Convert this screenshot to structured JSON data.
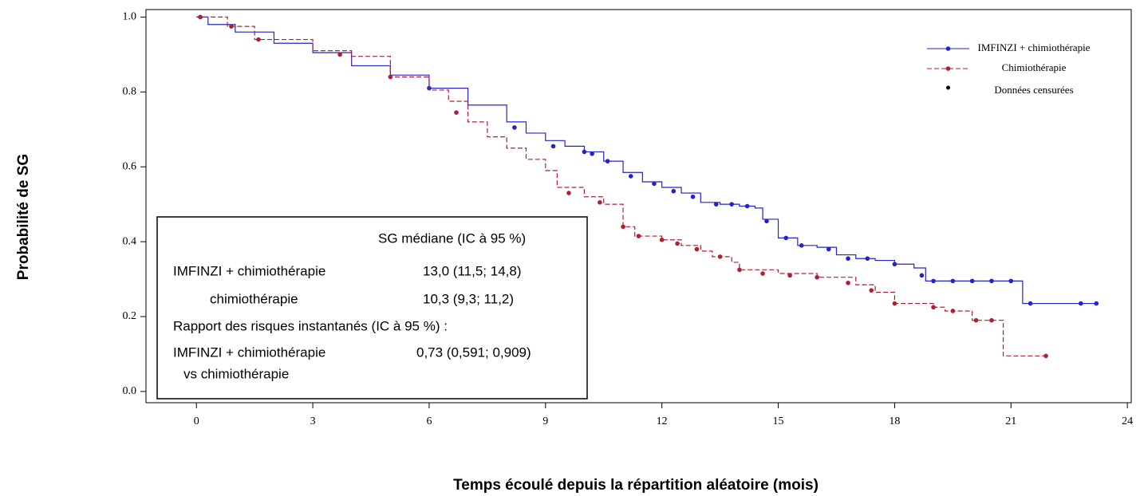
{
  "chart_data": {
    "type": "kaplan-meier",
    "y_label": "Probabilité de SG",
    "x_label": "Temps écoulé depuis la répartition aléatoire (mois)",
    "xlim": [
      -1.3,
      24.1
    ],
    "ylim": [
      -0.03,
      1.02
    ],
    "xticks": [
      0,
      3,
      6,
      9,
      12,
      15,
      18,
      21,
      24
    ],
    "yticks": [
      {
        "value": 0,
        "label": "0.0"
      },
      {
        "value": 0.2,
        "label": "0.2"
      },
      {
        "value": 0.4,
        "label": "0.4"
      },
      {
        "value": 0.6,
        "label": "0.6"
      },
      {
        "value": 0.8,
        "label": "0.8"
      },
      {
        "value": 1,
        "label": "1.0"
      }
    ],
    "censored_label": "Données censurées",
    "series": [
      {
        "name": "IMFINZI + chimiothérapie",
        "color": "#2323c8",
        "dashed": false,
        "x": [
          0,
          0.3,
          1,
          2,
          3,
          4,
          5,
          6,
          7,
          8,
          8.5,
          9,
          9.5,
          10,
          10.5,
          11,
          11.5,
          12,
          12.5,
          13,
          13.5,
          14,
          14.4,
          14.6,
          15,
          15.5,
          16,
          16.5,
          17,
          17.5,
          18,
          18.5,
          18.8,
          19.5,
          21.3,
          23.2
        ],
        "values": [
          1.0,
          0.98,
          0.96,
          0.93,
          0.905,
          0.87,
          0.845,
          0.81,
          0.765,
          0.72,
          0.69,
          0.67,
          0.655,
          0.64,
          0.615,
          0.585,
          0.56,
          0.545,
          0.53,
          0.505,
          0.5,
          0.495,
          0.49,
          0.46,
          0.41,
          0.39,
          0.385,
          0.365,
          0.355,
          0.35,
          0.34,
          0.33,
          0.295,
          0.295,
          0.235,
          0.235
        ],
        "censored_x": [
          0.1,
          6,
          8.2,
          9.2,
          10,
          10.2,
          10.6,
          11.2,
          11.8,
          12.3,
          12.8,
          13.4,
          13.8,
          14.2,
          14.7,
          15.2,
          15.6,
          16.3,
          16.8,
          17.3,
          18,
          18.7,
          19,
          19.5,
          20,
          20.5,
          21,
          21.5,
          22.8,
          23.2
        ],
        "censored_values": [
          1.0,
          0.81,
          0.705,
          0.655,
          0.64,
          0.635,
          0.615,
          0.575,
          0.555,
          0.535,
          0.52,
          0.5,
          0.5,
          0.495,
          0.455,
          0.41,
          0.39,
          0.38,
          0.355,
          0.355,
          0.34,
          0.31,
          0.295,
          0.295,
          0.295,
          0.295,
          0.295,
          0.235,
          0.235,
          0.235
        ]
      },
      {
        "name": "Chimiothérapie",
        "color": "#b01e32",
        "dashed": true,
        "x": [
          0,
          0.8,
          1.5,
          3,
          4,
          5,
          6,
          6.5,
          7,
          7.5,
          8,
          8.5,
          9,
          9.3,
          10,
          10.5,
          11,
          11.3,
          12,
          12.5,
          13,
          13.3,
          13.8,
          14,
          15,
          16,
          17,
          17.5,
          18,
          19,
          19.3,
          20,
          20.8,
          21.9
        ],
        "values": [
          1.0,
          0.975,
          0.94,
          0.91,
          0.895,
          0.84,
          0.805,
          0.775,
          0.72,
          0.68,
          0.65,
          0.62,
          0.59,
          0.545,
          0.52,
          0.5,
          0.44,
          0.415,
          0.405,
          0.39,
          0.375,
          0.36,
          0.345,
          0.325,
          0.315,
          0.305,
          0.285,
          0.265,
          0.235,
          0.225,
          0.215,
          0.19,
          0.095,
          0.095
        ],
        "censored_x": [
          0.1,
          0.9,
          1.6,
          3.7,
          5,
          6.7,
          9.6,
          10.4,
          11,
          11.4,
          12,
          12.4,
          12.9,
          13.5,
          14,
          14.6,
          15.3,
          16,
          16.8,
          17.4,
          18,
          19,
          19.5,
          20.1,
          20.5,
          21.9
        ],
        "censored_values": [
          1.0,
          0.975,
          0.94,
          0.9,
          0.84,
          0.745,
          0.53,
          0.505,
          0.44,
          0.415,
          0.405,
          0.395,
          0.38,
          0.36,
          0.325,
          0.315,
          0.31,
          0.305,
          0.29,
          0.27,
          0.235,
          0.225,
          0.215,
          0.19,
          0.19,
          0.095
        ]
      }
    ],
    "summary_box": {
      "header": "SG médiane (IC à 95 %)",
      "row1_label": "IMFINZI + chimiothérapie",
      "row1_value": "13,0 (11,5; 14,8)",
      "row2_label": "chimiothérapie",
      "row2_value": "10,3 (9,3; 11,2)",
      "hr_title": "Rapport des risques instantanés (IC à 95 %) :",
      "hr_label_1": "IMFINZI + chimiothérapie",
      "hr_label_2": "vs chimiothérapie",
      "hr_value": "0,73 (0,591; 0,909)"
    }
  }
}
